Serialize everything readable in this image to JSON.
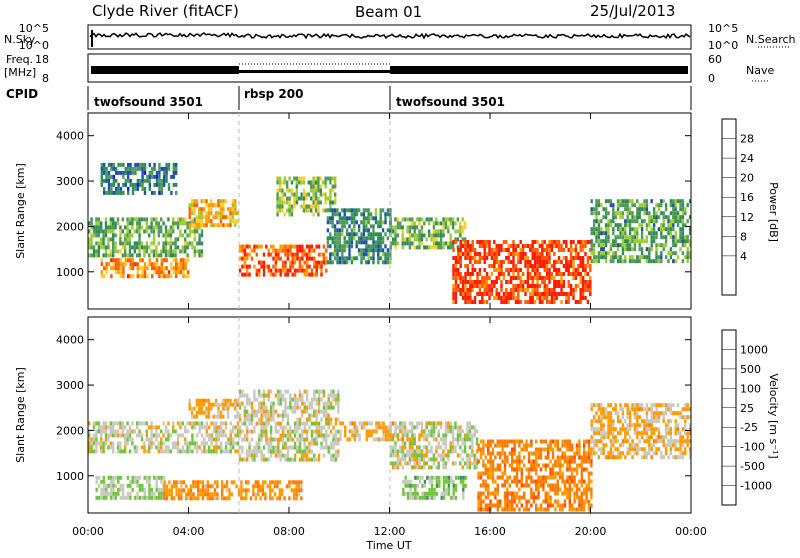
{
  "header": {
    "station": "Clyde River (fitACF)",
    "beam": "Beam 01",
    "date": "25/Jul/2013"
  },
  "nsky_panel": {
    "left_label": "N.Sky",
    "left_ticks": [
      "10^5",
      "10^0"
    ],
    "right_label": "N.Search",
    "right_ticks": [
      "10^5",
      "10^0"
    ],
    "right_legend_style": "dotted"
  },
  "freq_panel": {
    "left_label_line1": "Freq.",
    "left_label_line2": "[MHz]",
    "left_ticks": [
      "18",
      "8"
    ],
    "right_label": "Nave",
    "right_ticks": [
      "60",
      "0"
    ],
    "right_legend_style": "dotted"
  },
  "cpid_panel": {
    "label": "CPID",
    "segments": [
      {
        "name": "twofsound 3501",
        "start_hour": 0,
        "end_hour": 6
      },
      {
        "name": "rbsp 200",
        "start_hour": 6,
        "end_hour": 12
      },
      {
        "name": "twofsound 3501",
        "start_hour": 12,
        "end_hour": 24
      }
    ]
  },
  "power_colorbar": {
    "title": "Power [dB]",
    "ticks": [
      "28",
      "24",
      "20",
      "16",
      "12",
      "8",
      "4"
    ],
    "colors": [
      "#ff1a00",
      "#ff5c00",
      "#ff9a00",
      "#ffcc33",
      "#9ccc33",
      "#4e9a5a",
      "#2e8b57",
      "#1f4fa8",
      "#1414ff"
    ]
  },
  "velocity_colorbar": {
    "title": "Velocity [m s⁻¹]",
    "ticks": [
      "1000",
      "500",
      "100",
      "25",
      "-25",
      "-100",
      "-500",
      "-1000"
    ],
    "colors": [
      "#2d4faa",
      "#2e6e9a",
      "#3a8f6a",
      "#6ec43a",
      "#c8c8c0",
      "#ff9a00",
      "#ff7a00",
      "#ff5000",
      "#ff2000"
    ]
  },
  "chart_data": {
    "type": "heatmap",
    "xlabel": "Time UT",
    "ylabel": "Slant Range [km]",
    "x_ticks": [
      "00:00",
      "04:00",
      "08:00",
      "12:00",
      "16:00",
      "20:00",
      "00:00"
    ],
    "xlim_hours": [
      0,
      24
    ],
    "y_ticks": [
      1000,
      2000,
      3000,
      4000
    ],
    "ylim": [
      180,
      4500
    ],
    "panels": [
      {
        "name": "power",
        "unit": "dB",
        "range": [
          0,
          30
        ],
        "bands": [
          {
            "t0": 0.0,
            "t1": 4.5,
            "r0": 1400,
            "r1": 2200,
            "v": 12
          },
          {
            "t0": 0.5,
            "t1": 4.0,
            "r0": 900,
            "r1": 1300,
            "v": 22
          },
          {
            "t0": 4.0,
            "t1": 6.0,
            "r0": 2000,
            "r1": 2600,
            "v": 20
          },
          {
            "t0": 6.0,
            "t1": 9.5,
            "r0": 900,
            "r1": 1600,
            "v": 25
          },
          {
            "t0": 7.5,
            "t1": 9.8,
            "r0": 2300,
            "r1": 3100,
            "v": 14
          },
          {
            "t0": 9.5,
            "t1": 12.0,
            "r0": 1200,
            "r1": 2400,
            "v": 9
          },
          {
            "t0": 12.0,
            "t1": 15.0,
            "r0": 1500,
            "r1": 2200,
            "v": 13
          },
          {
            "t0": 14.5,
            "t1": 20.0,
            "r0": 300,
            "r1": 1700,
            "v": 27
          },
          {
            "t0": 20.0,
            "t1": 24.0,
            "r0": 1200,
            "r1": 2600,
            "v": 11
          },
          {
            "t0": 0.5,
            "t1": 3.5,
            "r0": 2700,
            "r1": 3400,
            "v": 8
          }
        ]
      },
      {
        "name": "velocity",
        "unit": "m s^-1",
        "range": [
          -1000,
          1000
        ],
        "bands": [
          {
            "t0": 0.0,
            "t1": 6.0,
            "r0": 1500,
            "r1": 2200,
            "v": 0
          },
          {
            "t0": 0.3,
            "t1": 3.0,
            "r0": 500,
            "r1": 1000,
            "v": 100
          },
          {
            "t0": 3.0,
            "t1": 8.5,
            "r0": 500,
            "r1": 900,
            "v": -300
          },
          {
            "t0": 4.0,
            "t1": 6.0,
            "r0": 2300,
            "r1": 2700,
            "v": -150
          },
          {
            "t0": 6.0,
            "t1": 10.0,
            "r0": 1400,
            "r1": 2900,
            "v": 0
          },
          {
            "t0": 10.0,
            "t1": 12.5,
            "r0": 1800,
            "r1": 2200,
            "v": -150
          },
          {
            "t0": 12.0,
            "t1": 15.5,
            "r0": 1200,
            "r1": 2200,
            "v": 0
          },
          {
            "t0": 12.5,
            "t1": 15.0,
            "r0": 500,
            "r1": 1000,
            "v": 200
          },
          {
            "t0": 15.5,
            "t1": 20.0,
            "r0": 300,
            "r1": 1800,
            "v": -400
          },
          {
            "t0": 20.0,
            "t1": 24.0,
            "r0": 1400,
            "r1": 2600,
            "v": -150
          }
        ]
      }
    ]
  }
}
